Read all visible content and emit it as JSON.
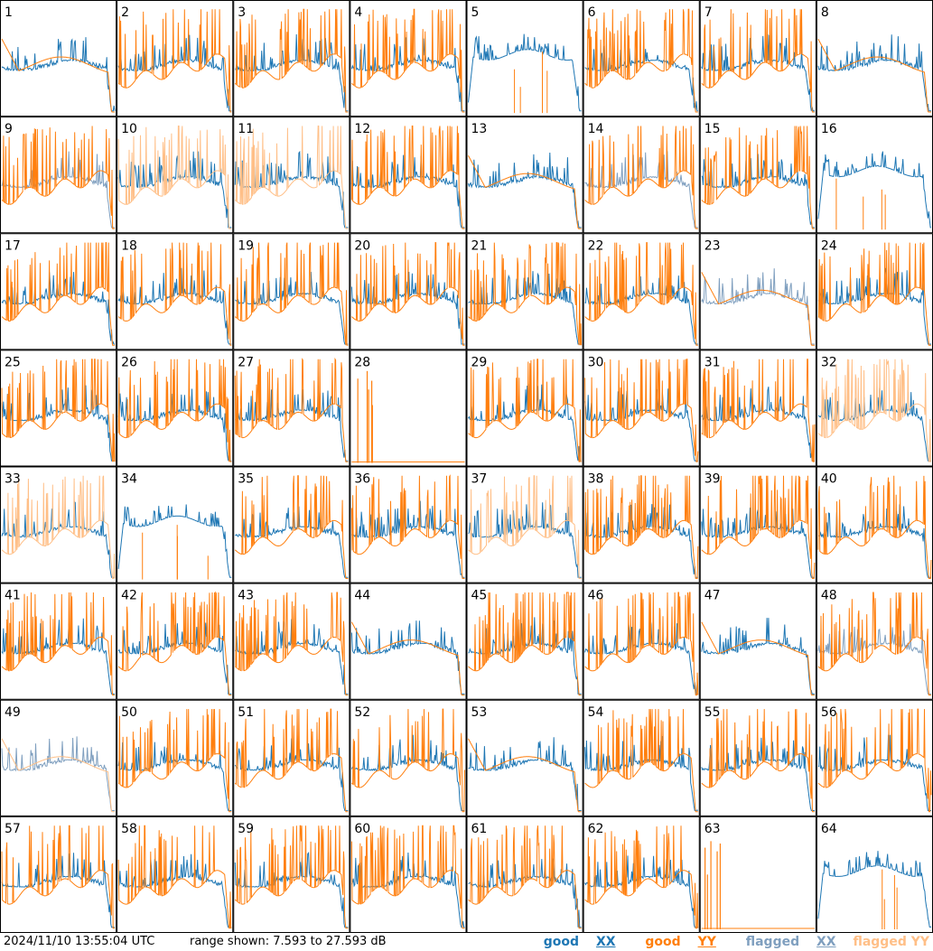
{
  "chart_data": {
    "type": "line",
    "title": "",
    "xlabel": "",
    "ylabel": "",
    "ylim": [
      7.593,
      27.593
    ],
    "grid_layout": "8 columns x 8 rows",
    "series_styles": [
      {
        "name": "good XX",
        "color": "#1f77b4"
      },
      {
        "name": "good YY",
        "color": "#ff7f0e"
      },
      {
        "name": "flagged XX",
        "color": "#7f9fbf"
      },
      {
        "name": "flagged YY",
        "color": "#ffbf87"
      }
    ],
    "panels": [
      {
        "label": "1",
        "kind": "flat",
        "xx": "good",
        "yy": "good"
      },
      {
        "label": "2",
        "kind": "spiky",
        "xx": "good",
        "yy": "good"
      },
      {
        "label": "3",
        "kind": "spiky",
        "xx": "good",
        "yy": "good"
      },
      {
        "label": "4",
        "kind": "spiky",
        "xx": "good",
        "yy": "good"
      },
      {
        "label": "5",
        "kind": "xxonly",
        "xx": "good",
        "yy": "good"
      },
      {
        "label": "6",
        "kind": "spiky",
        "xx": "good",
        "yy": "good"
      },
      {
        "label": "7",
        "kind": "spiky",
        "xx": "good",
        "yy": "good"
      },
      {
        "label": "8",
        "kind": "flat",
        "xx": "good",
        "yy": "good"
      },
      {
        "label": "9",
        "kind": "spiky",
        "xx": "flagged",
        "yy": "good"
      },
      {
        "label": "10",
        "kind": "spiky",
        "xx": "good",
        "yy": "flagged"
      },
      {
        "label": "11",
        "kind": "spiky",
        "xx": "good",
        "yy": "flagged"
      },
      {
        "label": "12",
        "kind": "spiky",
        "xx": "good",
        "yy": "good"
      },
      {
        "label": "13",
        "kind": "flat",
        "xx": "good",
        "yy": "good"
      },
      {
        "label": "14",
        "kind": "spiky",
        "xx": "flagged",
        "yy": "good"
      },
      {
        "label": "15",
        "kind": "spiky",
        "xx": "good",
        "yy": "good"
      },
      {
        "label": "16",
        "kind": "xxonly",
        "xx": "good",
        "yy": "good"
      },
      {
        "label": "17",
        "kind": "spiky",
        "xx": "good",
        "yy": "good"
      },
      {
        "label": "18",
        "kind": "spiky",
        "xx": "good",
        "yy": "good"
      },
      {
        "label": "19",
        "kind": "spiky",
        "xx": "good",
        "yy": "good"
      },
      {
        "label": "20",
        "kind": "spiky",
        "xx": "good",
        "yy": "good"
      },
      {
        "label": "21",
        "kind": "spiky",
        "xx": "good",
        "yy": "good"
      },
      {
        "label": "22",
        "kind": "spiky",
        "xx": "good",
        "yy": "good"
      },
      {
        "label": "23",
        "kind": "flat",
        "xx": "flagged",
        "yy": "good"
      },
      {
        "label": "24",
        "kind": "spiky",
        "xx": "good",
        "yy": "good"
      },
      {
        "label": "25",
        "kind": "spiky",
        "xx": "good",
        "yy": "good"
      },
      {
        "label": "26",
        "kind": "spiky",
        "xx": "good",
        "yy": "good"
      },
      {
        "label": "27",
        "kind": "spiky",
        "xx": "good",
        "yy": "good"
      },
      {
        "label": "28",
        "kind": "empty",
        "xx": "good",
        "yy": "good"
      },
      {
        "label": "29",
        "kind": "spiky",
        "xx": "good",
        "yy": "good"
      },
      {
        "label": "30",
        "kind": "spiky",
        "xx": "good",
        "yy": "good"
      },
      {
        "label": "31",
        "kind": "spiky",
        "xx": "good",
        "yy": "good"
      },
      {
        "label": "32",
        "kind": "spiky",
        "xx": "good",
        "yy": "flagged"
      },
      {
        "label": "33",
        "kind": "spiky",
        "xx": "good",
        "yy": "flagged"
      },
      {
        "label": "34",
        "kind": "xxonly",
        "xx": "good",
        "yy": "good"
      },
      {
        "label": "35",
        "kind": "spiky",
        "xx": "good",
        "yy": "good"
      },
      {
        "label": "36",
        "kind": "spiky",
        "xx": "good",
        "yy": "good"
      },
      {
        "label": "37",
        "kind": "spiky",
        "xx": "good",
        "yy": "flagged"
      },
      {
        "label": "38",
        "kind": "spiky",
        "xx": "good",
        "yy": "good"
      },
      {
        "label": "39",
        "kind": "spiky",
        "xx": "good",
        "yy": "good"
      },
      {
        "label": "40",
        "kind": "spiky",
        "xx": "good",
        "yy": "good"
      },
      {
        "label": "41",
        "kind": "spiky",
        "xx": "good",
        "yy": "good"
      },
      {
        "label": "42",
        "kind": "spiky",
        "xx": "good",
        "yy": "good"
      },
      {
        "label": "43",
        "kind": "spiky",
        "xx": "good",
        "yy": "good"
      },
      {
        "label": "44",
        "kind": "flat",
        "xx": "good",
        "yy": "good"
      },
      {
        "label": "45",
        "kind": "spiky",
        "xx": "good",
        "yy": "good"
      },
      {
        "label": "46",
        "kind": "spiky",
        "xx": "good",
        "yy": "good"
      },
      {
        "label": "47",
        "kind": "flat",
        "xx": "good",
        "yy": "good"
      },
      {
        "label": "48",
        "kind": "spiky",
        "xx": "flagged",
        "yy": "good"
      },
      {
        "label": "49",
        "kind": "flat",
        "xx": "flagged",
        "yy": "flagged"
      },
      {
        "label": "50",
        "kind": "spiky",
        "xx": "good",
        "yy": "good"
      },
      {
        "label": "51",
        "kind": "spiky",
        "xx": "good",
        "yy": "good"
      },
      {
        "label": "52",
        "kind": "spiky",
        "xx": "good",
        "yy": "good"
      },
      {
        "label": "53",
        "kind": "flat",
        "xx": "good",
        "yy": "good"
      },
      {
        "label": "54",
        "kind": "spiky",
        "xx": "good",
        "yy": "good"
      },
      {
        "label": "55",
        "kind": "spiky",
        "xx": "good",
        "yy": "good"
      },
      {
        "label": "56",
        "kind": "spiky",
        "xx": "good",
        "yy": "good"
      },
      {
        "label": "57",
        "kind": "spiky",
        "xx": "good",
        "yy": "good"
      },
      {
        "label": "58",
        "kind": "spiky",
        "xx": "good",
        "yy": "good"
      },
      {
        "label": "59",
        "kind": "spiky",
        "xx": "good",
        "yy": "good"
      },
      {
        "label": "60",
        "kind": "spiky",
        "xx": "good",
        "yy": "good"
      },
      {
        "label": "61",
        "kind": "spiky",
        "xx": "good",
        "yy": "good"
      },
      {
        "label": "62",
        "kind": "spiky",
        "xx": "good",
        "yy": "good"
      },
      {
        "label": "63",
        "kind": "empty",
        "xx": "good",
        "yy": "good"
      },
      {
        "label": "64",
        "kind": "xxonly",
        "xx": "good",
        "yy": "good"
      }
    ]
  },
  "footer": {
    "timestamp": "2024/11/10 13:55:04 UTC",
    "range": "range shown: 7.593 to 27.593 dB"
  },
  "legend": {
    "good_pre": "good ",
    "good_xx": "XX",
    "good_yy_pre": "good ",
    "good_yy": "YY",
    "flagged_pre": "flagged ",
    "flagged_xx": "XX",
    "flagged_yy": "flagged YY"
  },
  "colors": {
    "good_xx": "#1f77b4",
    "good_yy": "#ff7f0e",
    "flagged_xx": "#7f9fbf",
    "flagged_yy": "#ffbf87"
  }
}
